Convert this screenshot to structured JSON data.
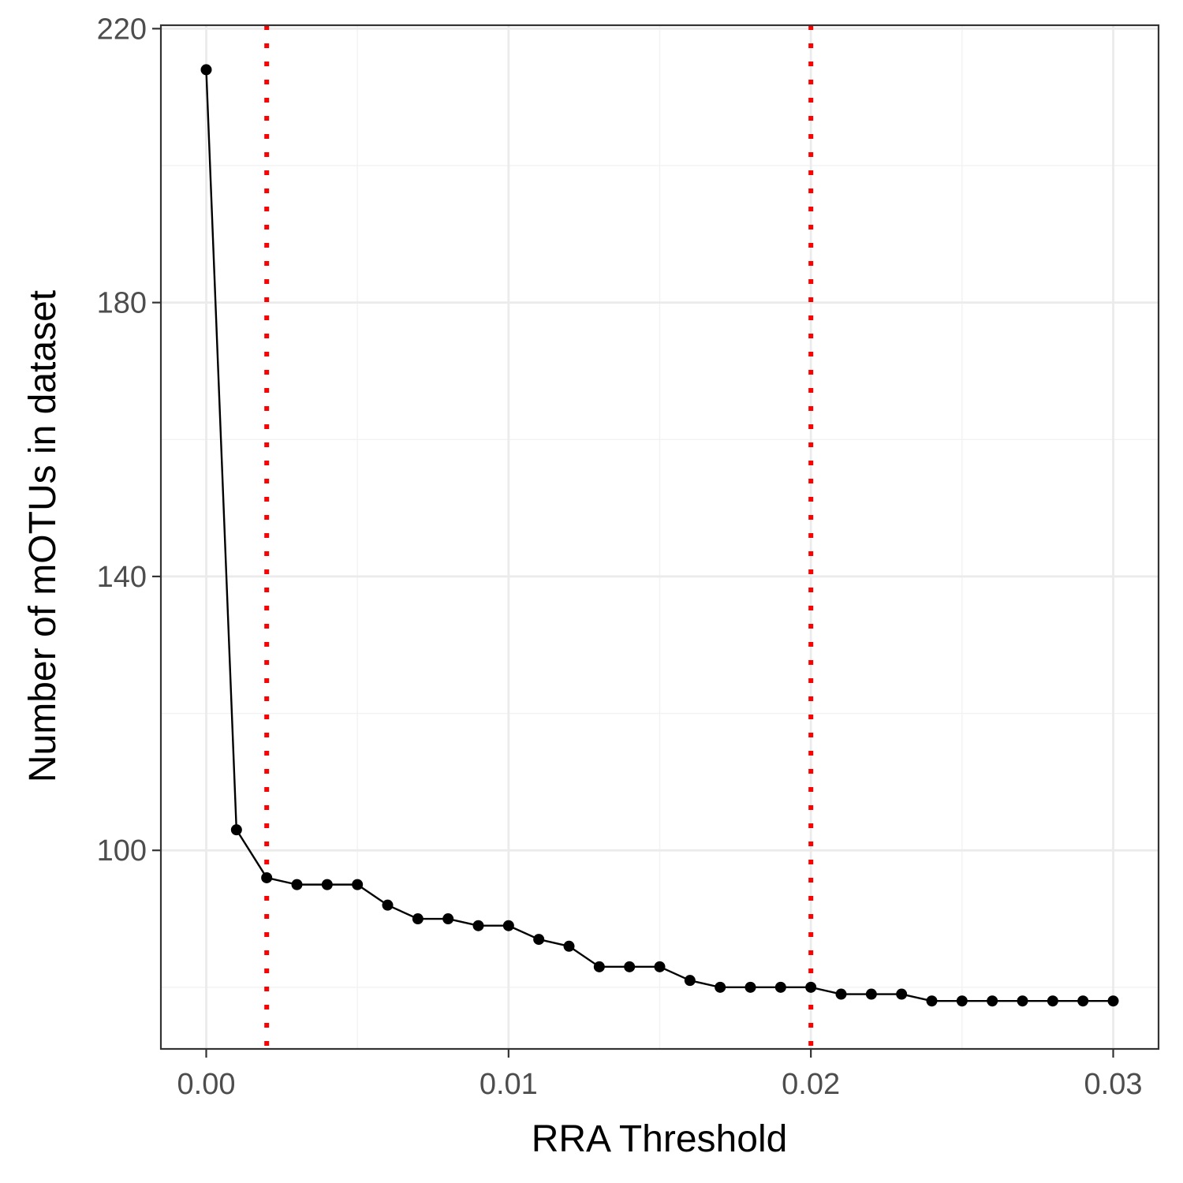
{
  "chart_data": {
    "type": "line",
    "title": "",
    "xlabel": "RRA Threshold",
    "ylabel": "Number of mOTUs in dataset",
    "xlim": [
      -0.0015,
      0.0315
    ],
    "ylim": [
      71,
      220.5
    ],
    "x_ticks": [
      0.0,
      0.01,
      0.02,
      0.03
    ],
    "x_tick_labels": [
      "0.00",
      "0.01",
      "0.02",
      "0.03"
    ],
    "y_ticks": [
      100,
      140,
      180,
      220
    ],
    "y_tick_labels": [
      "100",
      "140",
      "180",
      "220"
    ],
    "grid": true,
    "series": [
      {
        "x": [
          0.0,
          0.001,
          0.002,
          0.003,
          0.004,
          0.005,
          0.006,
          0.007,
          0.008,
          0.009,
          0.01,
          0.011,
          0.012,
          0.013,
          0.014,
          0.015,
          0.016,
          0.017,
          0.018,
          0.019,
          0.02,
          0.021,
          0.022,
          0.023,
          0.024,
          0.025,
          0.026,
          0.027,
          0.028,
          0.029,
          0.03
        ],
        "values": [
          214,
          103,
          96,
          95,
          95,
          95,
          92,
          90,
          90,
          89,
          89,
          87,
          86,
          83,
          83,
          83,
          81,
          80,
          80,
          80,
          80,
          79,
          79,
          79,
          78,
          78,
          78,
          78,
          78,
          78,
          78
        ],
        "color": "#000000"
      }
    ],
    "reference_lines": [
      {
        "axis": "x",
        "value": 0.002,
        "style": "dotted",
        "color": "#ff0000"
      },
      {
        "axis": "x",
        "value": 0.02,
        "style": "dotted",
        "color": "#ff0000"
      }
    ],
    "colors": {
      "panel_border": "#333333",
      "grid_major": "#ebebeb",
      "grid_minor": "#f2f2f2",
      "tick_label": "#4d4d4d",
      "axis_title": "#000000"
    }
  }
}
